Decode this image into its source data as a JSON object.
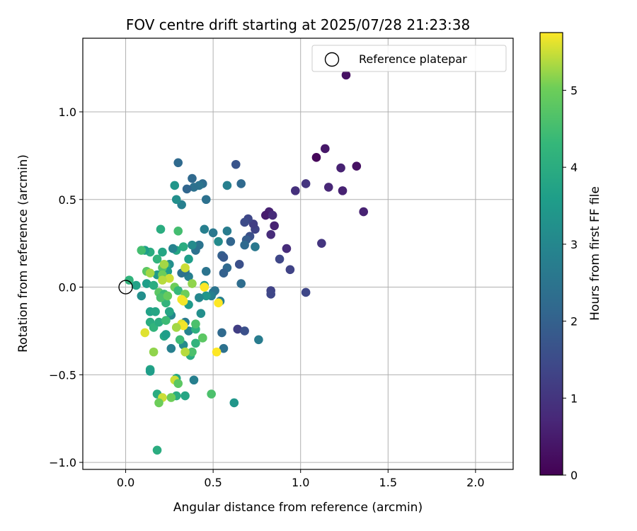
{
  "chart_data": {
    "type": "scatter",
    "title": "FOV centre drift starting at 2025/07/28 21:23:38",
    "xlabel": "Angular distance from reference (arcmin)",
    "ylabel": "Rotation from reference (arcmin)",
    "xlim": [
      -0.245,
      2.215
    ],
    "ylim": [
      -1.04,
      1.42
    ],
    "xticks": [
      0.0,
      0.5,
      1.0,
      1.5,
      2.0
    ],
    "xtick_labels": [
      "0.0",
      "0.5",
      "1.0",
      "1.5",
      "2.0"
    ],
    "yticks": [
      -1.0,
      -0.5,
      0.0,
      0.5,
      1.0
    ],
    "ytick_labels": [
      "−1.0",
      "−0.5",
      "0.0",
      "0.5",
      "1.0"
    ],
    "grid": true,
    "legend": {
      "placement": "top-right",
      "entries": [
        "Reference platepar"
      ]
    },
    "reference_point": {
      "label": "Reference platepar",
      "x": 0.0,
      "y": 0.0
    },
    "colorbar": {
      "label": "Hours from first FF file",
      "colormap": "viridis",
      "range": [
        0,
        5.75
      ],
      "ticks": [
        0,
        1,
        2,
        3,
        4,
        5
      ],
      "tick_labels": [
        "0",
        "1",
        "2",
        "3",
        "4",
        "5"
      ]
    },
    "points": [
      {
        "x": 1.26,
        "y": 1.21,
        "h": 0.3
      },
      {
        "x": 1.09,
        "y": 0.74,
        "h": 0.1
      },
      {
        "x": 1.14,
        "y": 0.79,
        "h": 0.4
      },
      {
        "x": 1.23,
        "y": 0.68,
        "h": 0.6
      },
      {
        "x": 1.32,
        "y": 0.69,
        "h": 0.3
      },
      {
        "x": 1.16,
        "y": 0.57,
        "h": 0.7
      },
      {
        "x": 1.24,
        "y": 0.55,
        "h": 0.6
      },
      {
        "x": 1.36,
        "y": 0.43,
        "h": 0.6
      },
      {
        "x": 0.97,
        "y": 0.55,
        "h": 0.9
      },
      {
        "x": 1.03,
        "y": 0.59,
        "h": 1.0
      },
      {
        "x": 0.82,
        "y": 0.43,
        "h": 0.6
      },
      {
        "x": 0.8,
        "y": 0.41,
        "h": 0.5
      },
      {
        "x": 0.84,
        "y": 0.41,
        "h": 0.8
      },
      {
        "x": 0.85,
        "y": 0.35,
        "h": 0.6
      },
      {
        "x": 0.83,
        "y": 0.3,
        "h": 0.8
      },
      {
        "x": 0.92,
        "y": 0.22,
        "h": 0.8
      },
      {
        "x": 1.12,
        "y": 0.25,
        "h": 1.0
      },
      {
        "x": 0.94,
        "y": 0.1,
        "h": 1.3
      },
      {
        "x": 0.88,
        "y": 0.16,
        "h": 1.4
      },
      {
        "x": 0.83,
        "y": -0.02,
        "h": 1.3
      },
      {
        "x": 0.83,
        "y": -0.04,
        "h": 1.4
      },
      {
        "x": 1.03,
        "y": -0.03,
        "h": 1.4
      },
      {
        "x": 0.74,
        "y": 0.33,
        "h": 1.3
      },
      {
        "x": 0.73,
        "y": 0.36,
        "h": 1.2
      },
      {
        "x": 0.7,
        "y": 0.39,
        "h": 1.4
      },
      {
        "x": 0.68,
        "y": 0.37,
        "h": 1.5
      },
      {
        "x": 0.71,
        "y": 0.29,
        "h": 1.6
      },
      {
        "x": 0.69,
        "y": 0.27,
        "h": 1.9
      },
      {
        "x": 0.68,
        "y": 0.24,
        "h": 2.2
      },
      {
        "x": 0.74,
        "y": 0.23,
        "h": 2.6
      },
      {
        "x": 0.65,
        "y": 0.13,
        "h": 1.6
      },
      {
        "x": 0.64,
        "y": -0.24,
        "h": 1.2
      },
      {
        "x": 0.68,
        "y": -0.25,
        "h": 1.6
      },
      {
        "x": 0.66,
        "y": 0.02,
        "h": 2.3
      },
      {
        "x": 0.76,
        "y": -0.3,
        "h": 2.7
      },
      {
        "x": 0.63,
        "y": 0.7,
        "h": 1.7
      },
      {
        "x": 0.66,
        "y": 0.59,
        "h": 2.2
      },
      {
        "x": 0.58,
        "y": 0.58,
        "h": 2.8
      },
      {
        "x": 0.58,
        "y": 0.32,
        "h": 2.7
      },
      {
        "x": 0.6,
        "y": 0.26,
        "h": 2.1
      },
      {
        "x": 0.55,
        "y": 0.18,
        "h": 2.0
      },
      {
        "x": 0.56,
        "y": 0.17,
        "h": 1.8
      },
      {
        "x": 0.58,
        "y": 0.11,
        "h": 2.2
      },
      {
        "x": 0.56,
        "y": 0.08,
        "h": 2.0
      },
      {
        "x": 0.53,
        "y": 0.26,
        "h": 3.1
      },
      {
        "x": 0.5,
        "y": 0.31,
        "h": 2.6
      },
      {
        "x": 0.45,
        "y": 0.33,
        "h": 2.8
      },
      {
        "x": 0.55,
        "y": -0.26,
        "h": 2.2
      },
      {
        "x": 0.56,
        "y": -0.35,
        "h": 2.4
      },
      {
        "x": 0.54,
        "y": -0.08,
        "h": 2.8
      },
      {
        "x": 0.5,
        "y": -0.03,
        "h": 2.9
      },
      {
        "x": 0.51,
        "y": -0.02,
        "h": 2.5
      },
      {
        "x": 0.49,
        "y": -0.05,
        "h": 2.8
      },
      {
        "x": 0.46,
        "y": 0.09,
        "h": 2.5
      },
      {
        "x": 0.46,
        "y": 0.5,
        "h": 2.4
      },
      {
        "x": 0.44,
        "y": 0.59,
        "h": 2.3
      },
      {
        "x": 0.42,
        "y": 0.58,
        "h": 2.5
      },
      {
        "x": 0.38,
        "y": 0.62,
        "h": 2.2
      },
      {
        "x": 0.39,
        "y": 0.57,
        "h": 2.4
      },
      {
        "x": 0.35,
        "y": 0.56,
        "h": 2.1
      },
      {
        "x": 0.3,
        "y": 0.71,
        "h": 2.2
      },
      {
        "x": 0.32,
        "y": 0.47,
        "h": 2.8
      },
      {
        "x": 0.29,
        "y": 0.5,
        "h": 3.2
      },
      {
        "x": 0.28,
        "y": 0.58,
        "h": 3.4
      },
      {
        "x": 0.42,
        "y": 0.24,
        "h": 2.5
      },
      {
        "x": 0.4,
        "y": 0.21,
        "h": 2.4
      },
      {
        "x": 0.38,
        "y": 0.24,
        "h": 3.1
      },
      {
        "x": 0.36,
        "y": 0.16,
        "h": 3.6
      },
      {
        "x": 0.36,
        "y": 0.06,
        "h": 2.8
      },
      {
        "x": 0.34,
        "y": 0.09,
        "h": 2.5
      },
      {
        "x": 0.32,
        "y": 0.08,
        "h": 2.4
      },
      {
        "x": 0.33,
        "y": 0.23,
        "h": 4.0
      },
      {
        "x": 0.29,
        "y": 0.21,
        "h": 3.8
      },
      {
        "x": 0.3,
        "y": 0.32,
        "h": 4.5
      },
      {
        "x": 0.27,
        "y": 0.22,
        "h": 2.9
      },
      {
        "x": 0.25,
        "y": 0.13,
        "h": 3.2
      },
      {
        "x": 0.45,
        "y": 0.01,
        "h": 3.5
      },
      {
        "x": 0.46,
        "y": -0.05,
        "h": 3.4
      },
      {
        "x": 0.42,
        "y": -0.06,
        "h": 3.0
      },
      {
        "x": 0.43,
        "y": -0.15,
        "h": 3.2
      },
      {
        "x": 0.39,
        "y": -0.53,
        "h": 2.8
      },
      {
        "x": 0.36,
        "y": -0.25,
        "h": 2.9
      },
      {
        "x": 0.36,
        "y": -0.1,
        "h": 3.5
      },
      {
        "x": 0.34,
        "y": -0.2,
        "h": 2.7
      },
      {
        "x": 0.33,
        "y": -0.33,
        "h": 3.1
      },
      {
        "x": 0.26,
        "y": -0.35,
        "h": 2.8
      },
      {
        "x": 0.26,
        "y": -0.16,
        "h": 3.0
      },
      {
        "x": 0.25,
        "y": -0.14,
        "h": 3.4
      },
      {
        "x": 0.37,
        "y": -0.39,
        "h": 4.0
      },
      {
        "x": 0.44,
        "y": -0.29,
        "h": 4.4
      },
      {
        "x": 0.4,
        "y": -0.32,
        "h": 4.2
      },
      {
        "x": 0.4,
        "y": -0.24,
        "h": 4.1
      },
      {
        "x": 0.38,
        "y": -0.37,
        "h": 4.6
      },
      {
        "x": 0.4,
        "y": -0.21,
        "h": 4.6
      },
      {
        "x": 0.2,
        "y": 0.33,
        "h": 4.0
      },
      {
        "x": 0.21,
        "y": 0.2,
        "h": 3.8
      },
      {
        "x": 0.14,
        "y": 0.2,
        "h": 4.0
      },
      {
        "x": 0.11,
        "y": 0.21,
        "h": 3.6
      },
      {
        "x": 0.09,
        "y": 0.21,
        "h": 4.5
      },
      {
        "x": 0.18,
        "y": 0.16,
        "h": 4.2
      },
      {
        "x": 0.23,
        "y": 0.12,
        "h": 4.0
      },
      {
        "x": 0.24,
        "y": 0.09,
        "h": 3.6
      },
      {
        "x": 0.21,
        "y": 0.11,
        "h": 4.7
      },
      {
        "x": 0.22,
        "y": 0.13,
        "h": 5.3
      },
      {
        "x": 0.18,
        "y": 0.07,
        "h": 3.5
      },
      {
        "x": 0.21,
        "y": 0.07,
        "h": 5.0
      },
      {
        "x": 0.12,
        "y": 0.09,
        "h": 4.8
      },
      {
        "x": 0.14,
        "y": 0.08,
        "h": 5.3
      },
      {
        "x": 0.25,
        "y": 0.05,
        "h": 5.5
      },
      {
        "x": 0.21,
        "y": 0.04,
        "h": 5.4
      },
      {
        "x": 0.34,
        "y": 0.11,
        "h": 5.5
      },
      {
        "x": 0.28,
        "y": 0.0,
        "h": 5.0
      },
      {
        "x": 0.38,
        "y": 0.02,
        "h": 5.2
      },
      {
        "x": 0.02,
        "y": 0.04,
        "h": 4.2
      },
      {
        "x": 0.06,
        "y": 0.01,
        "h": 3.7
      },
      {
        "x": 0.09,
        "y": -0.05,
        "h": 3.2
      },
      {
        "x": 0.12,
        "y": 0.02,
        "h": 3.6
      },
      {
        "x": 0.16,
        "y": 0.01,
        "h": 4.0
      },
      {
        "x": 0.19,
        "y": -0.03,
        "h": 4.8
      },
      {
        "x": 0.22,
        "y": -0.04,
        "h": 4.4
      },
      {
        "x": 0.23,
        "y": -0.09,
        "h": 4.2
      },
      {
        "x": 0.2,
        "y": -0.06,
        "h": 4.6
      },
      {
        "x": 0.24,
        "y": -0.05,
        "h": 4.9
      },
      {
        "x": 0.3,
        "y": -0.02,
        "h": 4.3
      },
      {
        "x": 0.34,
        "y": -0.04,
        "h": 5.0
      },
      {
        "x": 0.32,
        "y": -0.07,
        "h": 5.7
      },
      {
        "x": 0.33,
        "y": -0.08,
        "h": 5.7
      },
      {
        "x": 0.45,
        "y": 0.0,
        "h": 5.8
      },
      {
        "x": 0.53,
        "y": -0.09,
        "h": 5.8
      },
      {
        "x": 0.14,
        "y": -0.14,
        "h": 3.7
      },
      {
        "x": 0.17,
        "y": -0.14,
        "h": 3.8
      },
      {
        "x": 0.25,
        "y": -0.14,
        "h": 3.8
      },
      {
        "x": 0.14,
        "y": -0.2,
        "h": 4.0
      },
      {
        "x": 0.16,
        "y": -0.23,
        "h": 4.2
      },
      {
        "x": 0.19,
        "y": -0.2,
        "h": 4.0
      },
      {
        "x": 0.23,
        "y": -0.19,
        "h": 4.4
      },
      {
        "x": 0.32,
        "y": -0.21,
        "h": 5.6
      },
      {
        "x": 0.33,
        "y": -0.22,
        "h": 5.7
      },
      {
        "x": 0.29,
        "y": -0.23,
        "h": 5.3
      },
      {
        "x": 0.11,
        "y": -0.26,
        "h": 5.6
      },
      {
        "x": 0.22,
        "y": -0.28,
        "h": 3.8
      },
      {
        "x": 0.23,
        "y": -0.27,
        "h": 3.6
      },
      {
        "x": 0.31,
        "y": -0.3,
        "h": 4.4
      },
      {
        "x": 0.44,
        "y": -0.29,
        "h": 4.8
      },
      {
        "x": 0.34,
        "y": -0.37,
        "h": 5.4
      },
      {
        "x": 0.52,
        "y": -0.37,
        "h": 5.8
      },
      {
        "x": 0.16,
        "y": -0.37,
        "h": 5.2
      },
      {
        "x": 0.14,
        "y": -0.47,
        "h": 3.8
      },
      {
        "x": 0.14,
        "y": -0.48,
        "h": 3.6
      },
      {
        "x": 0.29,
        "y": -0.52,
        "h": 3.8
      },
      {
        "x": 0.28,
        "y": -0.53,
        "h": 5.5
      },
      {
        "x": 0.3,
        "y": -0.55,
        "h": 4.8
      },
      {
        "x": 0.34,
        "y": -0.62,
        "h": 3.8
      },
      {
        "x": 0.29,
        "y": -0.62,
        "h": 4.0
      },
      {
        "x": 0.18,
        "y": -0.61,
        "h": 4.0
      },
      {
        "x": 0.21,
        "y": -0.63,
        "h": 5.5
      },
      {
        "x": 0.26,
        "y": -0.63,
        "h": 5.0
      },
      {
        "x": 0.19,
        "y": -0.66,
        "h": 5.0
      },
      {
        "x": 0.49,
        "y": -0.61,
        "h": 4.6
      },
      {
        "x": 0.62,
        "y": -0.66,
        "h": 3.4
      },
      {
        "x": 0.18,
        "y": -0.93,
        "h": 4.0
      }
    ]
  }
}
